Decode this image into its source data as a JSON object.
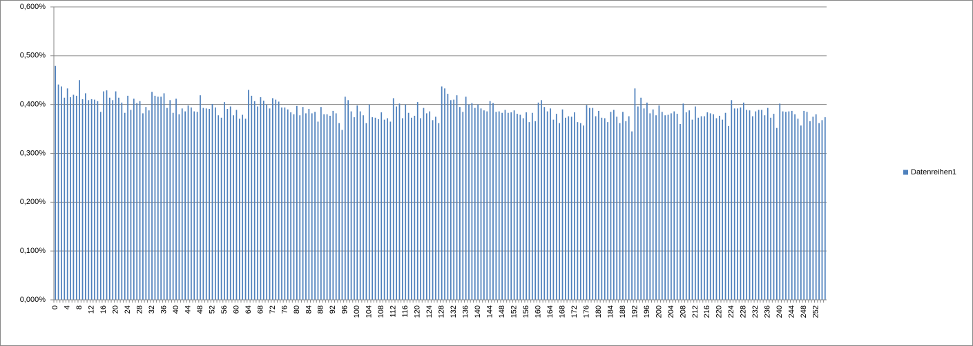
{
  "chart_data": {
    "type": "bar",
    "categories": [
      "0",
      null,
      null,
      null,
      "4",
      null,
      null,
      null,
      "8",
      null,
      null,
      null,
      "12",
      null,
      null,
      null,
      "16",
      null,
      null,
      null,
      "20",
      null,
      null,
      null,
      "24",
      null,
      null,
      null,
      "28",
      null,
      null,
      null,
      "32",
      null,
      null,
      null,
      "36",
      null,
      null,
      null,
      "40",
      null,
      null,
      null,
      "44",
      null,
      null,
      null,
      "48",
      null,
      null,
      null,
      "52",
      null,
      null,
      null,
      "56",
      null,
      null,
      null,
      "60",
      null,
      null,
      null,
      "64",
      null,
      null,
      null,
      "68",
      null,
      null,
      null,
      "72",
      null,
      null,
      null,
      "76",
      null,
      null,
      null,
      "80",
      null,
      null,
      null,
      "84",
      null,
      null,
      null,
      "88",
      null,
      null,
      null,
      "92",
      null,
      null,
      null,
      "96",
      null,
      null,
      null,
      "100",
      null,
      null,
      null,
      "104",
      null,
      null,
      null,
      "108",
      null,
      null,
      null,
      "112",
      null,
      null,
      null,
      "116",
      null,
      null,
      null,
      "120",
      null,
      null,
      null,
      "124",
      null,
      null,
      null,
      "128",
      null,
      null,
      null,
      "132",
      null,
      null,
      null,
      "136",
      null,
      null,
      null,
      "140",
      null,
      null,
      null,
      "144",
      null,
      null,
      null,
      "148",
      null,
      null,
      null,
      "152",
      null,
      null,
      null,
      "156",
      null,
      null,
      null,
      "160",
      null,
      null,
      null,
      "164",
      null,
      null,
      null,
      "168",
      null,
      null,
      null,
      "172",
      null,
      null,
      null,
      "176",
      null,
      null,
      null,
      "180",
      null,
      null,
      null,
      "184",
      null,
      null,
      null,
      "188",
      null,
      null,
      null,
      "192",
      null,
      null,
      null,
      "196",
      null,
      null,
      null,
      "200",
      null,
      null,
      null,
      "204",
      null,
      null,
      null,
      "208",
      null,
      null,
      null,
      "212",
      null,
      null,
      null,
      "216",
      null,
      null,
      null,
      "220",
      null,
      null,
      null,
      "224",
      null,
      null,
      null,
      "228",
      null,
      null,
      null,
      "232",
      null,
      null,
      null,
      "236",
      null,
      null,
      null,
      "240",
      null,
      null,
      null,
      "244",
      null,
      null,
      null,
      "248",
      null,
      null,
      null,
      "252",
      null,
      null,
      null
    ],
    "series": [
      {
        "name": "Datenreihen1",
        "color": "#4f81bd",
        "values": [
          0.479,
          0.441,
          0.437,
          0.414,
          0.433,
          0.415,
          0.42,
          0.418,
          0.45,
          0.411,
          0.423,
          0.409,
          0.411,
          0.41,
          0.407,
          0.385,
          0.427,
          0.429,
          0.414,
          0.409,
          0.427,
          0.414,
          0.404,
          0.383,
          0.418,
          0.389,
          0.412,
          0.403,
          0.407,
          0.382,
          0.395,
          0.388,
          0.426,
          0.418,
          0.416,
          0.416,
          0.423,
          0.393,
          0.409,
          0.383,
          0.412,
          0.38,
          0.392,
          0.386,
          0.398,
          0.394,
          0.386,
          0.385,
          0.419,
          0.393,
          0.392,
          0.391,
          0.401,
          0.394,
          0.378,
          0.373,
          0.405,
          0.391,
          0.396,
          0.378,
          0.389,
          0.371,
          0.379,
          0.371,
          0.43,
          0.418,
          0.407,
          0.396,
          0.415,
          0.408,
          0.4,
          0.392,
          0.413,
          0.41,
          0.406,
          0.394,
          0.394,
          0.39,
          0.384,
          0.38,
          0.397,
          0.378,
          0.395,
          0.382,
          0.391,
          0.382,
          0.385,
          0.365,
          0.395,
          0.38,
          0.38,
          0.377,
          0.387,
          0.382,
          0.362,
          0.348,
          0.416,
          0.409,
          0.386,
          0.374,
          0.398,
          0.386,
          0.378,
          0.362,
          0.4,
          0.374,
          0.373,
          0.37,
          0.384,
          0.369,
          0.372,
          0.365,
          0.413,
          0.396,
          0.402,
          0.372,
          0.4,
          0.383,
          0.373,
          0.377,
          0.405,
          0.372,
          0.393,
          0.382,
          0.386,
          0.368,
          0.375,
          0.362,
          0.437,
          0.433,
          0.422,
          0.409,
          0.41,
          0.419,
          0.395,
          0.385,
          0.416,
          0.4,
          0.403,
          0.393,
          0.4,
          0.392,
          0.388,
          0.386,
          0.407,
          0.403,
          0.385,
          0.386,
          0.383,
          0.389,
          0.383,
          0.384,
          0.388,
          0.381,
          0.379,
          0.372,
          0.384,
          0.364,
          0.383,
          0.366,
          0.404,
          0.409,
          0.395,
          0.386,
          0.392,
          0.369,
          0.381,
          0.362,
          0.39,
          0.373,
          0.376,
          0.375,
          0.384,
          0.364,
          0.362,
          0.357,
          0.399,
          0.393,
          0.393,
          0.376,
          0.387,
          0.373,
          0.372,
          0.364,
          0.385,
          0.389,
          0.375,
          0.362,
          0.385,
          0.366,
          0.376,
          0.345,
          0.433,
          0.396,
          0.414,
          0.392,
          0.404,
          0.382,
          0.39,
          0.378,
          0.398,
          0.385,
          0.378,
          0.379,
          0.382,
          0.386,
          0.381,
          0.36,
          0.402,
          0.384,
          0.388,
          0.369,
          0.396,
          0.373,
          0.376,
          0.376,
          0.384,
          0.382,
          0.38,
          0.372,
          0.377,
          0.369,
          0.383,
          0.356,
          0.409,
          0.392,
          0.392,
          0.394,
          0.404,
          0.389,
          0.388,
          0.376,
          0.386,
          0.389,
          0.389,
          0.378,
          0.393,
          0.373,
          0.381,
          0.352,
          0.402,
          0.386,
          0.385,
          0.386,
          0.387,
          0.38,
          0.371,
          0.357,
          0.387,
          0.385,
          0.366,
          0.375,
          0.38,
          0.362,
          0.368,
          0.374
        ]
      }
    ],
    "ylim": [
      0,
      0.6
    ],
    "yticks": [
      {
        "value": 0,
        "label": "0,000%"
      },
      {
        "value": 0.1,
        "label": "0,100%"
      },
      {
        "value": 0.2,
        "label": "0,200%"
      },
      {
        "value": 0.3,
        "label": "0,300%"
      },
      {
        "value": 0.4,
        "label": "0,400%"
      },
      {
        "value": 0.5,
        "label": "0,500%"
      },
      {
        "value": 0.6,
        "label": "0,600%"
      }
    ],
    "grid": true,
    "legend": "right"
  }
}
